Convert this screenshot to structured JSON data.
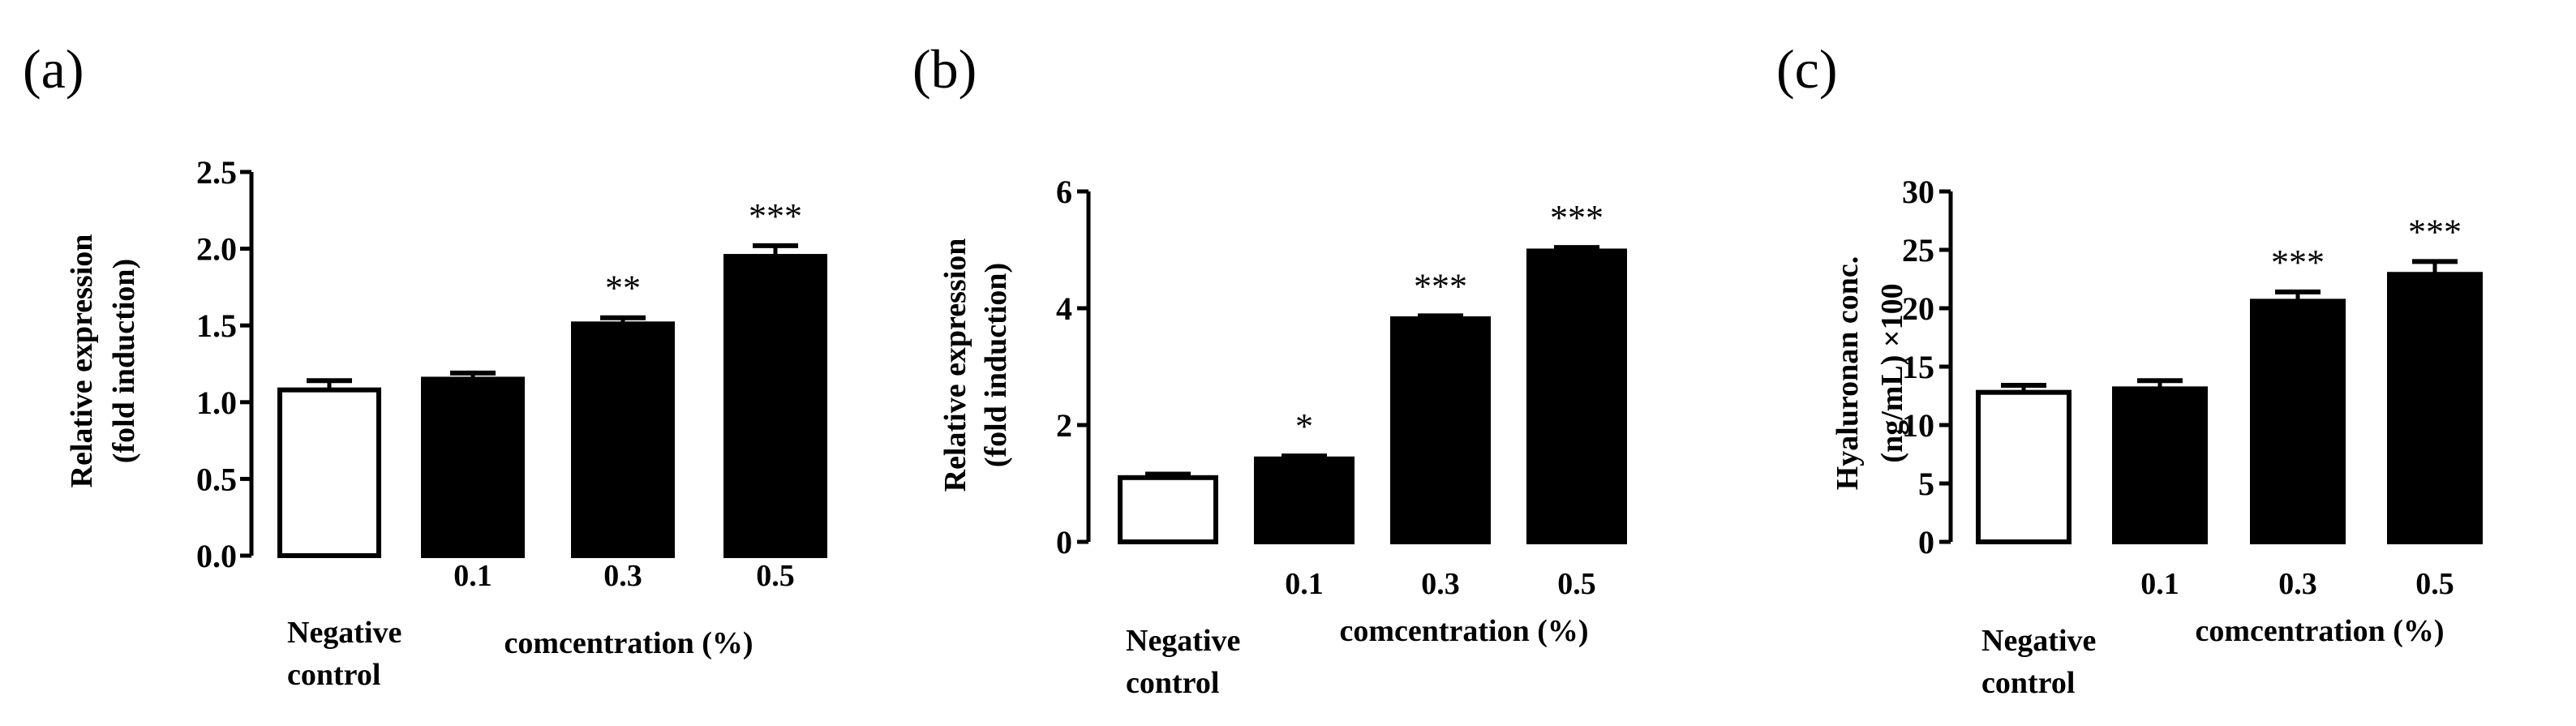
{
  "chart_data": [
    {
      "panel": "(a)",
      "type": "bar",
      "categories": [
        "Negative control",
        "0.1",
        "0.3",
        "0.5"
      ],
      "category_lines": [
        [
          "Negative",
          "control"
        ],
        [
          "0.1"
        ],
        [
          "0.3"
        ],
        [
          "0.5"
        ]
      ],
      "values": [
        1.08,
        1.15,
        1.51,
        1.95
      ],
      "errors": [
        0.06,
        0.04,
        0.04,
        0.07
      ],
      "significance": [
        "",
        "",
        "**",
        "***"
      ],
      "bar_fill": [
        "#ffffff",
        "#000000",
        "#000000",
        "#000000"
      ],
      "ylabel_lines": [
        "Relative expression",
        "(fold induction)"
      ],
      "xlabel": "comcentration (%)",
      "ylim": [
        0,
        2.5
      ],
      "yticks": [
        "0.0",
        "0.5",
        "1.0",
        "1.5",
        "2.0",
        "2.5"
      ]
    },
    {
      "panel": "(b)",
      "type": "bar",
      "categories": [
        "Negative control",
        "0.1",
        "0.3",
        "0.5"
      ],
      "category_lines": [
        [
          "Negative",
          "control"
        ],
        [
          "0.1"
        ],
        [
          "0.3"
        ],
        [
          "0.5"
        ]
      ],
      "values": [
        1.1,
        1.42,
        3.82,
        4.98
      ],
      "errors": [
        0.06,
        0.05,
        0.05,
        0.06
      ],
      "significance": [
        "",
        "*",
        "***",
        "***"
      ],
      "bar_fill": [
        "#ffffff",
        "#000000",
        "#000000",
        "#000000"
      ],
      "ylabel_lines": [
        "Relative expression",
        "(fold induction)"
      ],
      "xlabel": "comcentration (%)",
      "ylim": [
        0,
        6
      ],
      "yticks": [
        "0",
        "2",
        "4",
        "6"
      ]
    },
    {
      "panel": "(c)",
      "type": "bar",
      "categories": [
        "Negative control",
        "0.1",
        "0.3",
        "0.5"
      ],
      "category_lines": [
        [
          "Negative",
          "control"
        ],
        [
          "0.1"
        ],
        [
          "0.3"
        ],
        [
          "0.5"
        ]
      ],
      "values": [
        12.8,
        13.1,
        20.6,
        22.9
      ],
      "errors": [
        0.6,
        0.7,
        0.8,
        1.1
      ],
      "significance": [
        "",
        "",
        "***",
        "***"
      ],
      "bar_fill": [
        "#ffffff",
        "#000000",
        "#000000",
        "#000000"
      ],
      "ylabel_lines": [
        "Hyaluronan conc.",
        "(ng/mL) ×100"
      ],
      "xlabel": "comcentration (%)",
      "ylim": [
        0,
        30
      ],
      "yticks": [
        "0",
        "5",
        "10",
        "15",
        "20",
        "25",
        "30"
      ]
    }
  ]
}
